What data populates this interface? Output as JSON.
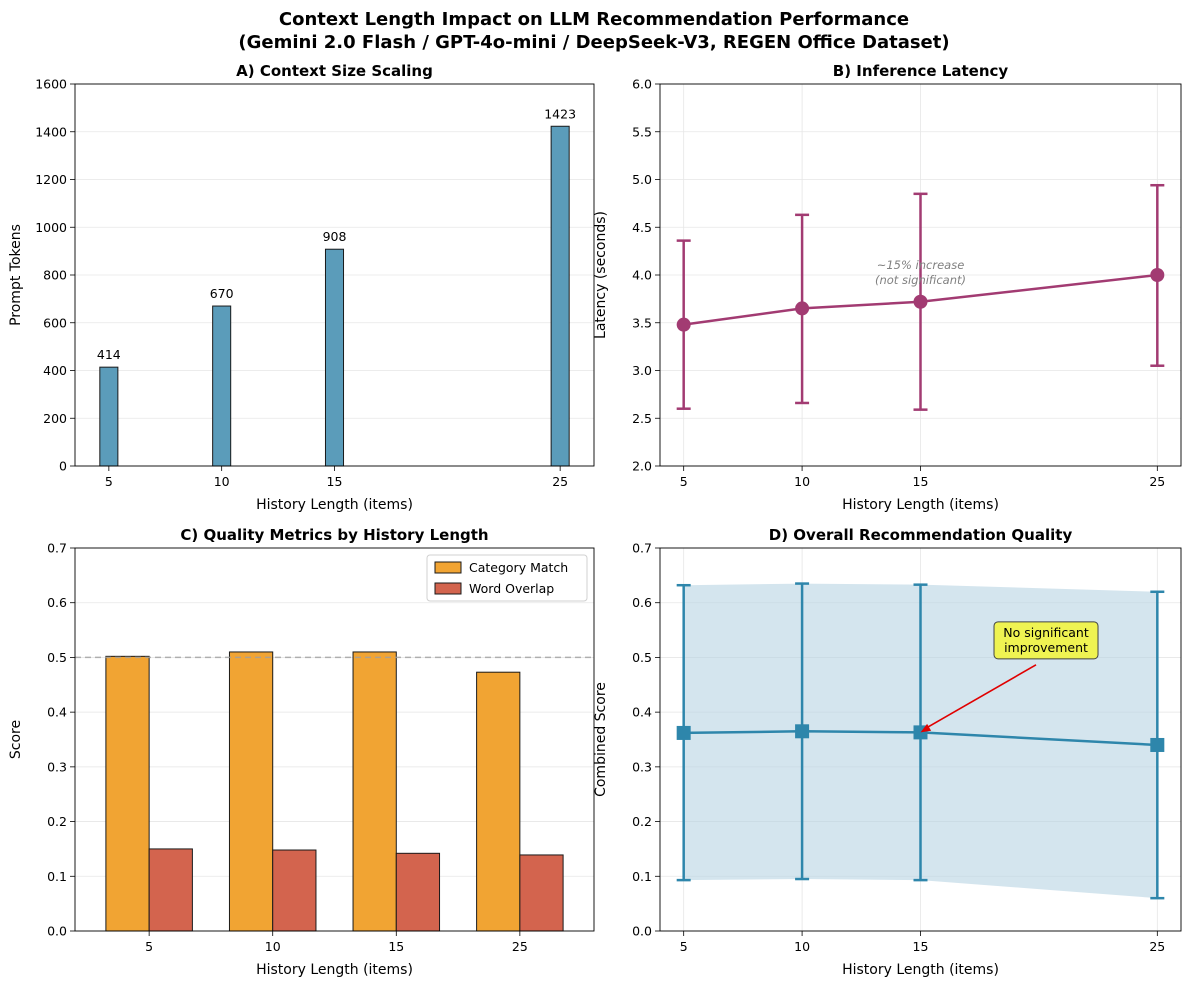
{
  "figure": {
    "title_line1": "Context Length Impact on LLM Recommendation Performance",
    "title_line2": "(Gemini 2.0 Flash / GPT-4o-mini / DeepSeek-V3, REGEN Office Dataset)"
  },
  "colors": {
    "bar_blue": "#5b9cba",
    "latency": "#a23b72",
    "category": "#f1a433",
    "word": "#d3644e",
    "combined": "#2e86ab",
    "band": "#b7d4e3",
    "annot_box": "#f2f542",
    "arrow": "#e00000"
  },
  "chart_data": [
    {
      "id": "A",
      "type": "bar",
      "title": "A) Context Size Scaling",
      "xlabel": "History Length (items)",
      "ylabel": "Prompt Tokens",
      "x": [
        5,
        10,
        15,
        25
      ],
      "xlim": [
        3.5,
        26.5
      ],
      "values": [
        414,
        670,
        908,
        1423
      ],
      "data_labels": [
        "414",
        "670",
        "908",
        "1423"
      ],
      "bar_width": 0.8,
      "ylim": [
        0,
        1600
      ],
      "yticks": [
        0,
        200,
        400,
        600,
        800,
        1000,
        1200,
        1400,
        1600
      ],
      "ytick_labels": [
        "0",
        "200",
        "400",
        "600",
        "800",
        "1000",
        "1200",
        "1400",
        "1600"
      ],
      "xtick_labels": [
        "5",
        "10",
        "15",
        "25"
      ],
      "grid": "y"
    },
    {
      "id": "B",
      "type": "line",
      "title": "B) Inference Latency",
      "xlabel": "History Length (items)",
      "ylabel": "Latency (seconds)",
      "x": [
        5,
        10,
        15,
        25
      ],
      "xlim": [
        4,
        26
      ],
      "values": [
        3.48,
        3.65,
        3.72,
        4.0
      ],
      "err_low": [
        2.6,
        2.66,
        2.59,
        3.05
      ],
      "err_high": [
        4.36,
        4.63,
        4.85,
        4.94
      ],
      "ylim": [
        2.0,
        6.0
      ],
      "yticks": [
        2.0,
        2.5,
        3.0,
        3.5,
        4.0,
        4.5,
        5.0,
        5.5,
        6.0
      ],
      "ytick_labels": [
        "2.0",
        "2.5",
        "3.0",
        "3.5",
        "4.0",
        "4.5",
        "5.0",
        "5.5",
        "6.0"
      ],
      "xtick_labels": [
        "5",
        "10",
        "15",
        "25"
      ],
      "grid": "both",
      "annotation": {
        "line1": "~15% increase",
        "line2": "(not significant)",
        "x": 15,
        "y": 4.0
      }
    },
    {
      "id": "C",
      "type": "bar",
      "title": "C) Quality Metrics by History Length",
      "xlabel": "History Length (items)",
      "ylabel": "Score",
      "categories": [
        "5",
        "10",
        "15",
        "25"
      ],
      "series": [
        {
          "name": "Category Match",
          "values": [
            0.502,
            0.51,
            0.51,
            0.473
          ]
        },
        {
          "name": "Word Overlap",
          "values": [
            0.15,
            0.148,
            0.142,
            0.139
          ]
        }
      ],
      "ylim": [
        0,
        0.7
      ],
      "yticks": [
        0,
        0.1,
        0.2,
        0.3,
        0.4,
        0.5,
        0.6,
        0.7
      ],
      "ytick_labels": [
        "0.0",
        "0.1",
        "0.2",
        "0.3",
        "0.4",
        "0.5",
        "0.6",
        "0.7"
      ],
      "reference_line": 0.5,
      "legend": "top-right",
      "grid": "y"
    },
    {
      "id": "D",
      "type": "line",
      "title": "D) Overall Recommendation Quality",
      "xlabel": "History Length (items)",
      "ylabel": "Combined Score",
      "x": [
        5,
        10,
        15,
        25
      ],
      "xlim": [
        4,
        26
      ],
      "values": [
        0.362,
        0.365,
        0.363,
        0.34
      ],
      "err_low": [
        0.093,
        0.095,
        0.093,
        0.06
      ],
      "err_high": [
        0.632,
        0.635,
        0.633,
        0.62
      ],
      "ylim": [
        0,
        0.7
      ],
      "yticks": [
        0,
        0.1,
        0.2,
        0.3,
        0.4,
        0.5,
        0.6,
        0.7
      ],
      "ytick_labels": [
        "0.0",
        "0.1",
        "0.2",
        "0.3",
        "0.4",
        "0.5",
        "0.6",
        "0.7"
      ],
      "xtick_labels": [
        "5",
        "10",
        "15",
        "25"
      ],
      "grid": "both",
      "annotation": {
        "line1": "No significant",
        "line2": "improvement",
        "x_text": 20.3,
        "y_text": 0.523,
        "x_target": 15,
        "y_target": 0.363
      }
    }
  ]
}
